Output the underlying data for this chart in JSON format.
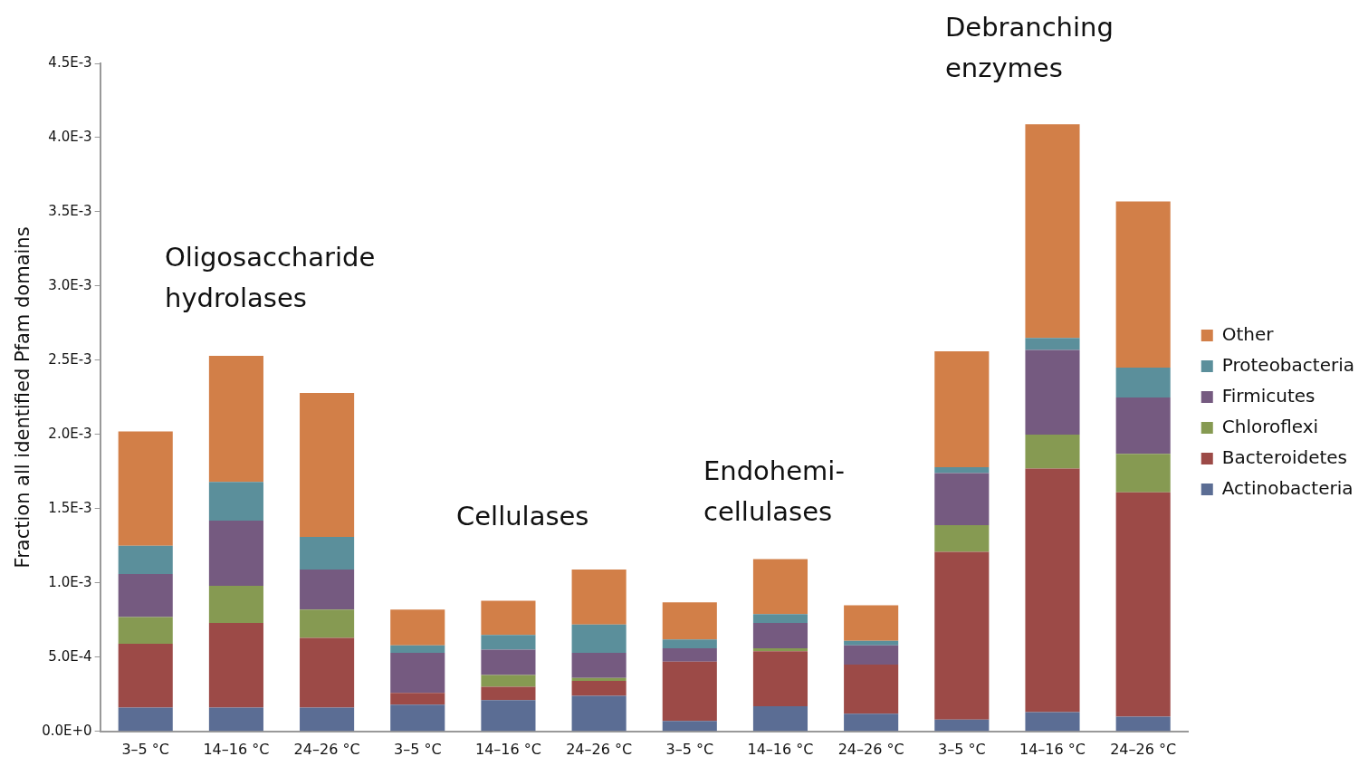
{
  "chart_data": {
    "type": "bar",
    "stacked": true,
    "ylabel": "Fraction all identified Pfam domains",
    "categories": [
      "3–5 °C",
      "14–16 °C",
      "24–26 °C",
      "3–5 °C",
      "14–16 °C",
      "24–26 °C",
      "3–5 °C",
      "14–16 °C",
      "24–26 °C",
      "3–5 °C",
      "14–16 °C",
      "24–26 °C"
    ],
    "series": [
      {
        "name": "Actinobacteria",
        "color": "#5b6d94",
        "values": [
          0.00016,
          0.00016,
          0.00016,
          0.00018,
          0.00021,
          0.00024,
          7e-05,
          0.00017,
          0.00012,
          8e-05,
          0.00013,
          0.0001
        ]
      },
      {
        "name": "Bacteroidetes",
        "color": "#9c4a47",
        "values": [
          0.00043,
          0.00057,
          0.00047,
          8e-05,
          9e-05,
          0.0001,
          0.0004,
          0.00037,
          0.00033,
          0.00113,
          0.00164,
          0.00151
        ]
      },
      {
        "name": "Chloroflexi",
        "color": "#869a52",
        "values": [
          0.00018,
          0.00025,
          0.00019,
          0,
          8e-05,
          2e-05,
          0,
          2e-05,
          0,
          0.00018,
          0.00023,
          0.00026
        ]
      },
      {
        "name": "Firmicutes",
        "color": "#755a80",
        "values": [
          0.00029,
          0.00044,
          0.00027,
          0.00027,
          0.00017,
          0.00017,
          9e-05,
          0.00017,
          0.00013,
          0.00035,
          0.00057,
          0.00038
        ]
      },
      {
        "name": "Proteobacteria",
        "color": "#5b8f9b",
        "values": [
          0.00019,
          0.00026,
          0.00022,
          5e-05,
          0.0001,
          0.00019,
          6e-05,
          6e-05,
          3e-05,
          4e-05,
          8e-05,
          0.0002
        ]
      },
      {
        "name": "Other",
        "color": "#d27f48",
        "values": [
          0.00077,
          0.00085,
          0.00097,
          0.00024,
          0.00023,
          0.00037,
          0.00025,
          0.00037,
          0.00024,
          0.00078,
          0.00144,
          0.00112
        ]
      }
    ],
    "ylim": [
      0,
      0.0045
    ],
    "yticks": [
      {
        "value": 0,
        "label": "0.0E+0"
      },
      {
        "value": 0.0005,
        "label": "5.0E-4"
      },
      {
        "value": 0.001,
        "label": "1.0E-3"
      },
      {
        "value": 0.0015,
        "label": "1.5E-3"
      },
      {
        "value": 0.002,
        "label": "2.0E-3"
      },
      {
        "value": 0.0025,
        "label": "2.5E-3"
      },
      {
        "value": 0.003,
        "label": "3.0E-3"
      },
      {
        "value": 0.0035,
        "label": "3.5E-3"
      },
      {
        "value": 0.004,
        "label": "4.0E-3"
      },
      {
        "value": 0.0045,
        "label": "4.5E-3"
      }
    ],
    "annotations": [
      "Oligosaccharide hydrolases",
      "Cellulases",
      "Endohemi-cellulases",
      "Debranching enzymes"
    ],
    "legend": "right",
    "grid": false
  }
}
